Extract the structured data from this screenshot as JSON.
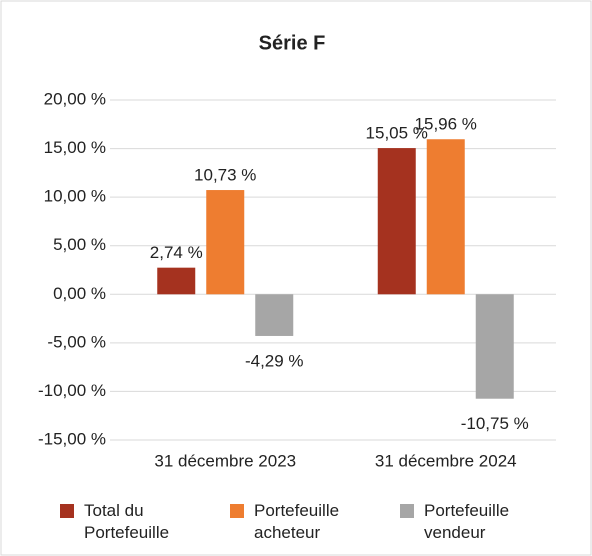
{
  "chart_data": {
    "type": "bar",
    "title": "Série F",
    "categories": [
      "31 décembre 2023",
      "31 décembre 2024"
    ],
    "series": [
      {
        "name": "Total du Portefeuille",
        "color": "#a5321f",
        "values": [
          2.74,
          15.05
        ],
        "value_labels": [
          "2,74 %",
          "15,05 %"
        ]
      },
      {
        "name": "Portefeuille acheteur",
        "color": "#ee7d30",
        "values": [
          10.73,
          15.96
        ],
        "value_labels": [
          "10,73 %",
          "15,96 %"
        ]
      },
      {
        "name": "Portefeuille vendeur",
        "color": "#a6a6a6",
        "values": [
          -4.29,
          -10.75
        ],
        "value_labels": [
          "-4,29 %",
          "-10,75 %"
        ]
      }
    ],
    "ylim": [
      -15,
      20
    ],
    "yticks": [
      {
        "value": -15,
        "label": "-15,00 %"
      },
      {
        "value": -10,
        "label": "-10,00 %"
      },
      {
        "value": -5,
        "label": "-5,00 %"
      },
      {
        "value": 0,
        "label": "0,00 %"
      },
      {
        "value": 5,
        "label": "5,00 %"
      },
      {
        "value": 10,
        "label": "10,00 %"
      },
      {
        "value": 15,
        "label": "15,00 %"
      },
      {
        "value": 20,
        "label": "20,00 %"
      }
    ],
    "grid": true
  }
}
